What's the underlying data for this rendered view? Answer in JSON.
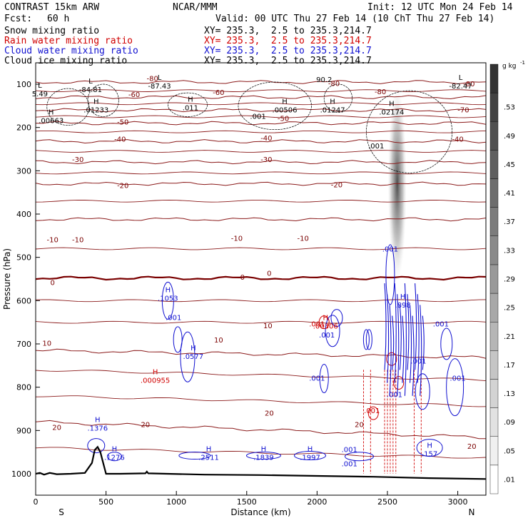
{
  "header": {
    "title": "CONTRAST 15km ARW",
    "org": "NCAR/MMM",
    "init": "Init: 12 UTC Mon 24 Feb 14",
    "fcst_label": "Fcst:",
    "fcst_value": "60 h",
    "valid": "Valid: 00 UTC Thu 27 Feb 14 (10 ChT Thu 27 Feb 14)",
    "fields": [
      {
        "name": "Snow mixing ratio",
        "xy": "XY= 235.3,  2.5 to 235.3,214.7",
        "color": "#000000"
      },
      {
        "name": "Rain water mixing ratio",
        "xy": "XY= 235.3,  2.5 to 235.3,214.7",
        "color": "#d00000"
      },
      {
        "name": "Cloud water mixing ratio",
        "xy": "XY= 235.3,  2.5 to 235.3,214.7",
        "color": "#1010d0"
      },
      {
        "name": "Cloud ice mixing ratio",
        "xy": "XY= 235.3,  2.5 to 235.3,214.7",
        "color": "#000000"
      }
    ]
  },
  "chart_data": {
    "type": "contour cross-section",
    "xlabel": "Distance (km)",
    "ylabel": "Pressure (hPa)",
    "xlim": [
      0,
      3200
    ],
    "ylim": [
      1040,
      40
    ],
    "x_ticks": [
      0,
      500,
      1000,
      1500,
      2000,
      2500,
      3000
    ],
    "y_ticks": [
      100,
      200,
      300,
      400,
      500,
      600,
      700,
      800,
      900,
      1000
    ],
    "x_end_labels": {
      "left": "S",
      "right": "N"
    },
    "temperature_contours": [
      {
        "label": "-80",
        "p": 95
      },
      {
        "label": "-70",
        "p": 130
      },
      {
        "label": "-60",
        "p": 160
      },
      {
        "label": "-50",
        "p": 190
      },
      {
        "label": "-40",
        "p": 232
      },
      {
        "label": "-30",
        "p": 280
      },
      {
        "label": "-20",
        "p": 330
      },
      {
        "label": "-10",
        "p": 412
      },
      {
        "label": "0",
        "p": 548
      },
      {
        "label": "10",
        "p": 715
      },
      {
        "label": "20",
        "p": 880
      }
    ],
    "temperature_labels": [
      {
        "text": "-80",
        "x": 830,
        "p": 88
      },
      {
        "text": "-80",
        "x": 2120,
        "p": 99
      },
      {
        "text": "-80",
        "x": 2450,
        "p": 118
      },
      {
        "text": "-80",
        "x": 3080,
        "p": 100
      },
      {
        "text": "-70",
        "x": 3040,
        "p": 160
      },
      {
        "text": "-60",
        "x": 1300,
        "p": 120
      },
      {
        "text": "-60",
        "x": 700,
        "p": 125
      },
      {
        "text": "-50",
        "x": 620,
        "p": 188
      },
      {
        "text": "-50",
        "x": 1760,
        "p": 180
      },
      {
        "text": "-40",
        "x": 600,
        "p": 228
      },
      {
        "text": "-40",
        "x": 1640,
        "p": 225
      },
      {
        "text": "-40",
        "x": 3000,
        "p": 228
      },
      {
        "text": "-30",
        "x": 300,
        "p": 275
      },
      {
        "text": "-30",
        "x": 1640,
        "p": 275
      },
      {
        "text": "-20",
        "x": 620,
        "p": 335
      },
      {
        "text": "-20",
        "x": 2140,
        "p": 333
      },
      {
        "text": "-10",
        "x": 120,
        "p": 460
      },
      {
        "text": "-10",
        "x": 300,
        "p": 460
      },
      {
        "text": "-10",
        "x": 1430,
        "p": 457
      },
      {
        "text": "-10",
        "x": 1900,
        "p": 457
      },
      {
        "text": "0",
        "x": 120,
        "p": 559
      },
      {
        "text": "0",
        "x": 1470,
        "p": 547
      },
      {
        "text": "0",
        "x": 1660,
        "p": 538
      },
      {
        "text": "10",
        "x": 80,
        "p": 699
      },
      {
        "text": "10",
        "x": 1300,
        "p": 692
      },
      {
        "text": "10",
        "x": 1650,
        "p": 659
      },
      {
        "text": "20",
        "x": 150,
        "p": 894
      },
      {
        "text": "20",
        "x": 780,
        "p": 887
      },
      {
        "text": "20",
        "x": 1660,
        "p": 861
      },
      {
        "text": "20",
        "x": 2300,
        "p": 887
      },
      {
        "text": "20",
        "x": 3100,
        "p": 937
      }
    ],
    "snow_ice_maxima": [
      {
        "label": "L",
        "value": "5.49",
        "x": 30,
        "p": 118
      },
      {
        "label": "L",
        "value": "-84.81",
        "x": 390,
        "p": 108
      },
      {
        "label": "L",
        "value": "-87.43",
        "x": 880,
        "p": 100
      },
      {
        "label": "L",
        "value": "-82.47",
        "x": 3020,
        "p": 100
      },
      {
        "label": "H",
        "value": ".00663",
        "x": 110,
        "p": 180
      },
      {
        "label": "H",
        "value": ".01233",
        "x": 430,
        "p": 155
      },
      {
        "label": "H",
        "value": ".011",
        "x": 1100,
        "p": 150
      },
      {
        "label": "H",
        "value": ".00506",
        "x": 1770,
        "p": 155
      },
      {
        "label": "H",
        "value": ".01247",
        "x": 2110,
        "p": 155
      },
      {
        "label": "H",
        "value": ".02174",
        "x": 2530,
        "p": 160
      },
      {
        "label": ".001",
        "value": "",
        "x": 1580,
        "p": 175
      },
      {
        "label": ".001",
        "value": "",
        "x": 2420,
        "p": 243
      },
      {
        "label": "90.2",
        "value": "",
        "x": 2050,
        "p": 90
      }
    ],
    "rain_maxima": [
      {
        "label": "H",
        "value": ".000955",
        "x": 850,
        "p": 780
      },
      {
        "label": "H",
        "value": ".00306",
        "x": 2060,
        "p": 655
      },
      {
        "label": ".001",
        "value": "",
        "x": 2000,
        "p": 655
      },
      {
        "label": ".001",
        "value": "",
        "x": 2390,
        "p": 855
      }
    ],
    "cloud_water_maxima": [
      {
        "label": "H",
        "value": ".1053",
        "x": 940,
        "p": 590
      },
      {
        "label": ".001",
        "value": "",
        "x": 980,
        "p": 640
      },
      {
        "label": "H",
        "value": ".0577",
        "x": 1120,
        "p": 725
      },
      {
        "label": "H",
        "value": ".1376",
        "x": 440,
        "p": 890
      },
      {
        "label": "H",
        "value": ".1276",
        "x": 560,
        "p": 958
      },
      {
        "label": "H",
        "value": ".2511",
        "x": 1230,
        "p": 958
      },
      {
        "label": "H",
        "value": ".1839",
        "x": 1620,
        "p": 958
      },
      {
        "label": "H",
        "value": ".1997",
        "x": 1950,
        "p": 958
      },
      {
        "label": ".001",
        "value": "",
        "x": 2230,
        "p": 945
      },
      {
        "label": ".001",
        "value": "",
        "x": 2230,
        "p": 978
      },
      {
        "label": "H",
        "value": ".898",
        "x": 2610,
        "p": 606
      },
      {
        "label": ".001",
        "value": "",
        "x": 2520,
        "p": 482
      },
      {
        "label": ".001",
        "value": "",
        "x": 2070,
        "p": 680
      },
      {
        "label": ".001",
        "value": "",
        "x": 2000,
        "p": 780
      },
      {
        "label": ".001",
        "value": "",
        "x": 2550,
        "p": 818
      },
      {
        "label": ".001",
        "value": "",
        "x": 2720,
        "p": 740
      },
      {
        "label": ".001",
        "value": "",
        "x": 2880,
        "p": 655
      },
      {
        "label": ".001",
        "value": "",
        "x": 3000,
        "p": 780
      },
      {
        "label": "H",
        "value": ".157",
        "x": 2800,
        "p": 950
      }
    ],
    "terrain": [
      [
        0,
        1000
      ],
      [
        30,
        998
      ],
      [
        60,
        1002
      ],
      [
        100,
        998
      ],
      [
        150,
        1001
      ],
      [
        250,
        1000
      ],
      [
        350,
        998
      ],
      [
        400,
        975
      ],
      [
        420,
        945
      ],
      [
        440,
        938
      ],
      [
        460,
        950
      ],
      [
        480,
        975
      ],
      [
        500,
        1000
      ],
      [
        600,
        1000
      ],
      [
        780,
        999
      ],
      [
        790,
        995
      ],
      [
        800,
        999
      ],
      [
        1200,
        1002
      ],
      [
        1600,
        1003
      ],
      [
        2000,
        1005
      ],
      [
        2400,
        1007
      ],
      [
        2800,
        1010
      ],
      [
        3200,
        1012
      ]
    ],
    "colorbar": {
      "unit": "g kg",
      "unit_sup": "-1",
      "levels": [
        ".01",
        ".05",
        ".09",
        ".13",
        ".17",
        ".21",
        ".25",
        ".29",
        ".33",
        ".37",
        ".41",
        ".45",
        ".49",
        ".53"
      ],
      "color_low": "#ffffff",
      "color_high": "#333333"
    }
  }
}
